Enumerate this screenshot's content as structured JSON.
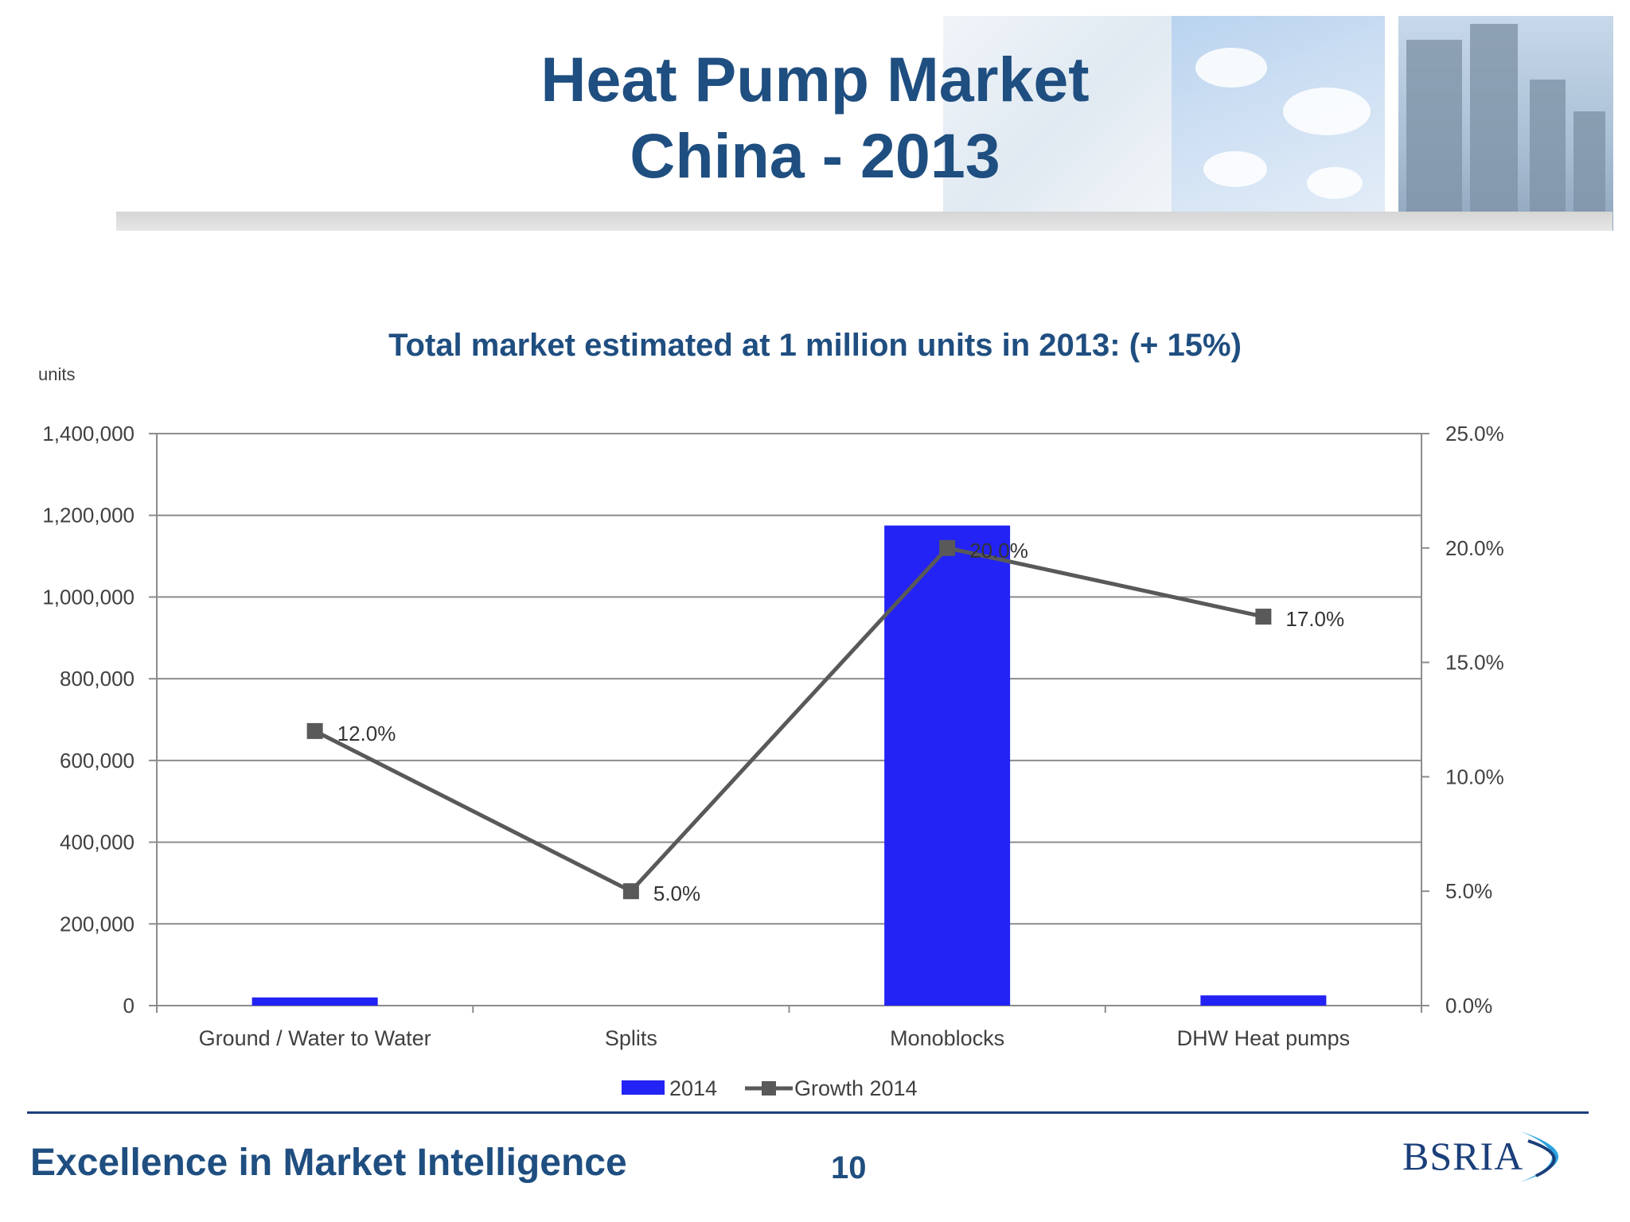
{
  "slide": {
    "title_line1": "Heat Pump Market",
    "title_line2": "China - 2013",
    "subtitle": "Total market estimated at 1 million units in 2013: (+ 15%)",
    "units_label": "units",
    "footer_text": "Excellence in Market Intelligence",
    "page_number": "10",
    "logo_text": "BSRIA"
  },
  "colors": {
    "bar": "#2323f5",
    "line": "#595959",
    "title": "#1f4e80"
  },
  "chart_data": {
    "type": "bar",
    "categories": [
      "Ground / Water to Water",
      "Splits",
      "Monoblocks",
      "DHW Heat pumps"
    ],
    "series": [
      {
        "name": "2014",
        "type": "bar",
        "axis": "left",
        "values": [
          20000,
          0,
          1175000,
          25000
        ]
      },
      {
        "name": "Growth 2014",
        "type": "line",
        "axis": "right",
        "values": [
          0.12,
          0.05,
          0.2,
          0.17
        ],
        "labels": [
          "12.0%",
          "5.0%",
          "20.0%",
          "17.0%"
        ]
      }
    ],
    "y_left": {
      "range": [
        0,
        1400000
      ],
      "ticks": [
        0,
        200000,
        400000,
        600000,
        800000,
        1000000,
        1200000,
        1400000
      ],
      "tick_labels": [
        "0",
        "200,000",
        "400,000",
        "600,000",
        "800,000",
        "1,000,000",
        "1,200,000",
        "1,400,000"
      ]
    },
    "y_right": {
      "range": [
        0,
        0.25
      ],
      "ticks": [
        0,
        0.05,
        0.1,
        0.15,
        0.2,
        0.25
      ],
      "tick_labels": [
        "0.0%",
        "5.0%",
        "10.0%",
        "15.0%",
        "20.0%",
        "25.0%"
      ]
    },
    "grid": true,
    "legend": "bottom"
  }
}
